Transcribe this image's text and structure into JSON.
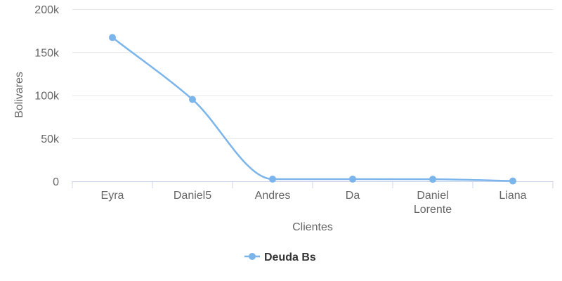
{
  "chart_data": {
    "type": "line",
    "categories": [
      "Eyra",
      "Daniel5",
      "Andres",
      "Da",
      "Daniel Lorente",
      "Liana"
    ],
    "series": [
      {
        "name": "Deuda Bs",
        "values": [
          167000,
          95000,
          2500,
          2500,
          2300,
          300
        ],
        "color": "#7cb5ec"
      }
    ],
    "xlabel": "Clientes",
    "ylabel": "Bolivares",
    "ylim": [
      0,
      200000
    ],
    "yticks": [
      0,
      50000,
      100000,
      150000,
      200000
    ],
    "ytick_labels": [
      "0",
      "50k",
      "100k",
      "150k",
      "200k"
    ],
    "grid": true,
    "smooth": true,
    "legend_position": "bottom-center",
    "axis_color": "#ccd6eb",
    "grid_color": "#e6e6e6"
  }
}
